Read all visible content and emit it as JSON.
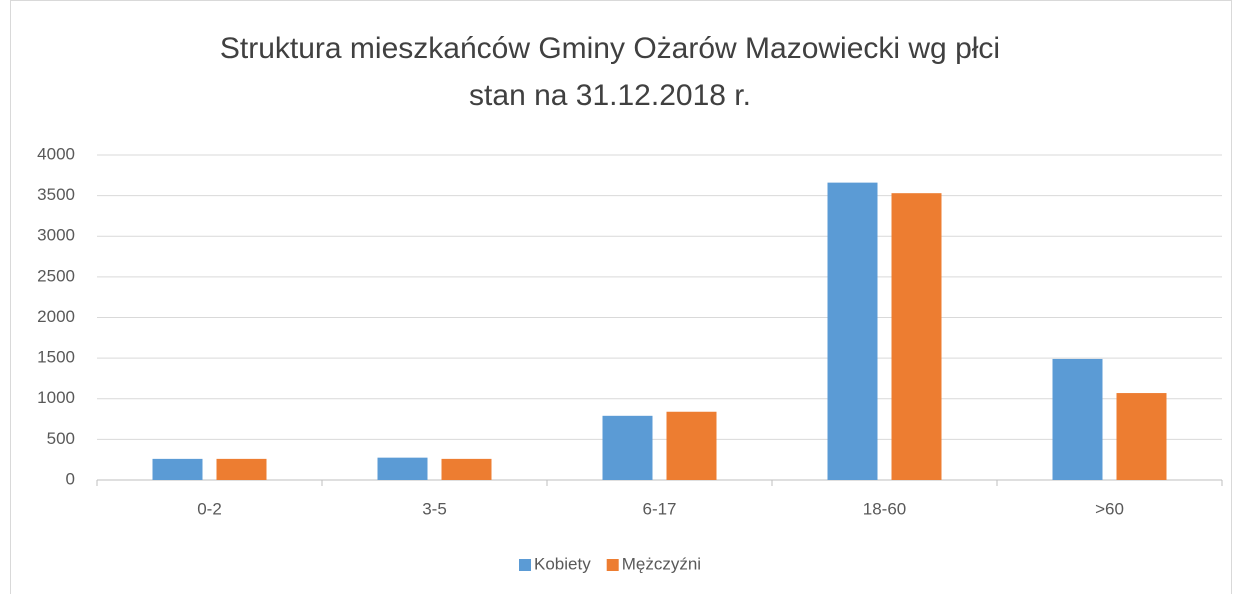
{
  "chart_data": {
    "type": "bar",
    "title": "Struktura mieszkańców Gminy Ożarów Mazowiecki wg płci",
    "subtitle": "stan na 31.12.2018 r.",
    "categories": [
      "0-2",
      "3-5",
      "6-17",
      "18-60",
      ">60"
    ],
    "series": [
      {
        "name": "Kobiety",
        "color": "#5b9bd5",
        "values": [
          260,
          275,
          790,
          3660,
          1490
        ]
      },
      {
        "name": "Mężczyźni",
        "color": "#ed7d31",
        "values": [
          260,
          260,
          840,
          3530,
          1070
        ]
      }
    ],
    "ylim": [
      0,
      4000
    ],
    "yticks": [
      0,
      500,
      1000,
      1500,
      2000,
      2500,
      3000,
      3500,
      4000
    ],
    "grid": true,
    "legend": "bottom"
  }
}
